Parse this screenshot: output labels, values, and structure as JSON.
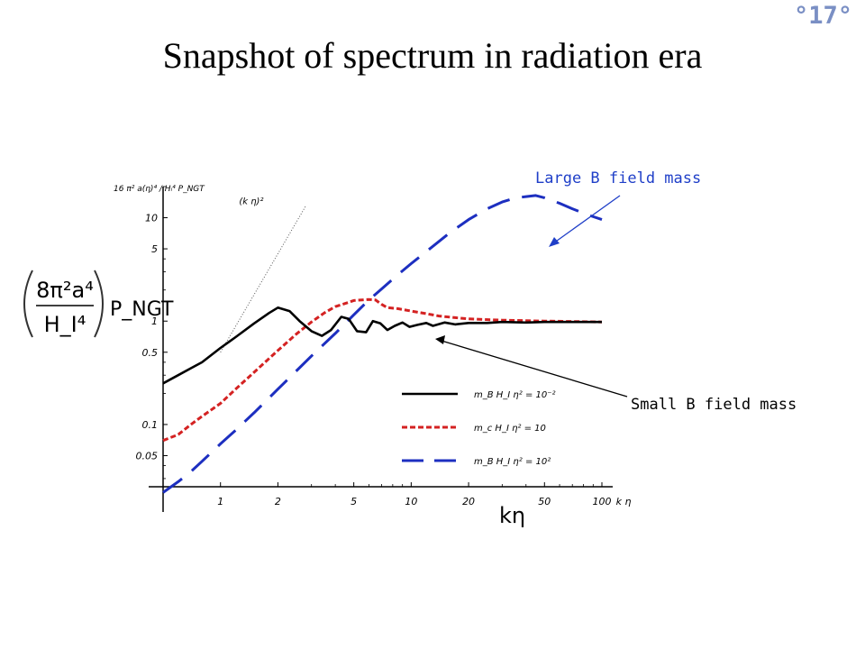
{
  "slide": {
    "title": "Snapshot of spectrum in radiation era",
    "page_number": "°17°"
  },
  "annotations": {
    "large_mass": "Large B field mass",
    "small_mass": "Small B field mass",
    "x_var": "kη"
  },
  "colors": {
    "annotation_text": "#1f3fc8",
    "blue_series": "#1d2fc0",
    "red_series": "#d42222",
    "black_series": "#000000",
    "page_number": "#7a8fc4"
  },
  "chart_data": {
    "type": "line",
    "x_scale": "log",
    "y_scale": "log",
    "xlim": [
      0.5,
      100
    ],
    "ylim": [
      0.025,
      20
    ],
    "xlabel": "k η",
    "ylabel_original": "16 π² a(η)⁴ / Hᵢ⁴ P_NGT",
    "ylabel_overlay": {
      "numerator": "8π²a⁴",
      "denominator": "H_I⁴",
      "suffix": "P_NGT"
    },
    "x_ticks": [
      {
        "value": 1,
        "label": "1"
      },
      {
        "value": 2,
        "label": "2"
      },
      {
        "value": 5,
        "label": "5"
      },
      {
        "value": 10,
        "label": "10"
      },
      {
        "value": 20,
        "label": "20"
      },
      {
        "value": 50,
        "label": "50"
      },
      {
        "value": 100,
        "label": "100"
      }
    ],
    "y_ticks": [
      {
        "value": 0.05,
        "label": "0.05"
      },
      {
        "value": 0.1,
        "label": "0.1"
      },
      {
        "value": 0.5,
        "label": "0.5"
      },
      {
        "value": 1,
        "label": "1"
      },
      {
        "value": 5,
        "label": "5"
      },
      {
        "value": 10,
        "label": "10"
      }
    ],
    "reference_line": {
      "label": "(k η)²",
      "points": [
        [
          1,
          0.5
        ],
        [
          2.8,
          13
        ]
      ]
    },
    "legend": {
      "placement": "bottom-right",
      "entries": [
        "m_B H_I η² = 10⁻²",
        "m_c H_I η² = 10",
        "m_B H_I η² = 10²"
      ]
    },
    "series": [
      {
        "name": "m_B H_I η² = 10⁻²",
        "style": "solid",
        "points": [
          [
            0.5,
            0.25
          ],
          [
            0.6,
            0.3
          ],
          [
            0.7,
            0.35
          ],
          [
            0.8,
            0.4
          ],
          [
            1.0,
            0.55
          ],
          [
            1.2,
            0.7
          ],
          [
            1.5,
            0.95
          ],
          [
            1.8,
            1.2
          ],
          [
            2.0,
            1.35
          ],
          [
            2.3,
            1.25
          ],
          [
            2.6,
            1.0
          ],
          [
            3.0,
            0.8
          ],
          [
            3.4,
            0.72
          ],
          [
            3.8,
            0.82
          ],
          [
            4.3,
            1.1
          ],
          [
            4.7,
            1.05
          ],
          [
            5.2,
            0.8
          ],
          [
            5.8,
            0.78
          ],
          [
            6.3,
            1.0
          ],
          [
            6.9,
            0.95
          ],
          [
            7.5,
            0.82
          ],
          [
            8.2,
            0.9
          ],
          [
            9.0,
            0.97
          ],
          [
            9.8,
            0.88
          ],
          [
            10.8,
            0.92
          ],
          [
            12,
            0.96
          ],
          [
            13,
            0.9
          ],
          [
            15,
            0.97
          ],
          [
            17,
            0.93
          ],
          [
            20,
            0.96
          ],
          [
            25,
            0.96
          ],
          [
            30,
            0.98
          ],
          [
            40,
            0.97
          ],
          [
            50,
            0.98
          ],
          [
            70,
            0.98
          ],
          [
            100,
            0.98
          ]
        ]
      },
      {
        "name": "m_c H_I η² = 10",
        "style": "dotted",
        "points": [
          [
            0.5,
            0.07
          ],
          [
            0.6,
            0.08
          ],
          [
            0.7,
            0.1
          ],
          [
            0.8,
            0.12
          ],
          [
            1.0,
            0.16
          ],
          [
            1.2,
            0.22
          ],
          [
            1.5,
            0.32
          ],
          [
            2.0,
            0.52
          ],
          [
            2.5,
            0.75
          ],
          [
            3.0,
            0.98
          ],
          [
            3.5,
            1.2
          ],
          [
            4.0,
            1.38
          ],
          [
            4.5,
            1.48
          ],
          [
            5.0,
            1.58
          ],
          [
            6.0,
            1.62
          ],
          [
            6.5,
            1.6
          ],
          [
            7.0,
            1.45
          ],
          [
            7.5,
            1.35
          ],
          [
            8.5,
            1.32
          ],
          [
            10,
            1.25
          ],
          [
            12,
            1.18
          ],
          [
            14,
            1.12
          ],
          [
            17,
            1.08
          ],
          [
            20,
            1.05
          ],
          [
            30,
            1.02
          ],
          [
            50,
            1.0
          ],
          [
            100,
            0.98
          ]
        ]
      },
      {
        "name": "m_B H_I η² = 10²",
        "style": "dashed",
        "points": [
          [
            0.5,
            0.022
          ],
          [
            0.6,
            0.028
          ],
          [
            0.7,
            0.035
          ],
          [
            0.8,
            0.044
          ],
          [
            1.0,
            0.065
          ],
          [
            1.2,
            0.088
          ],
          [
            1.5,
            0.13
          ],
          [
            2.0,
            0.22
          ],
          [
            2.5,
            0.33
          ],
          [
            3.0,
            0.46
          ],
          [
            4.0,
            0.76
          ],
          [
            5.0,
            1.15
          ],
          [
            6.0,
            1.6
          ],
          [
            7.0,
            2.05
          ],
          [
            8.5,
            2.8
          ],
          [
            10,
            3.6
          ],
          [
            13,
            5.3
          ],
          [
            16,
            7.2
          ],
          [
            20,
            9.6
          ],
          [
            25,
            12.2
          ],
          [
            30,
            14.2
          ],
          [
            35,
            15.5
          ],
          [
            40,
            16.0
          ],
          [
            45,
            16.4
          ],
          [
            50,
            15.6
          ],
          [
            60,
            13.8
          ],
          [
            70,
            12.2
          ],
          [
            85,
            10.6
          ],
          [
            100,
            9.6
          ]
        ]
      }
    ]
  }
}
